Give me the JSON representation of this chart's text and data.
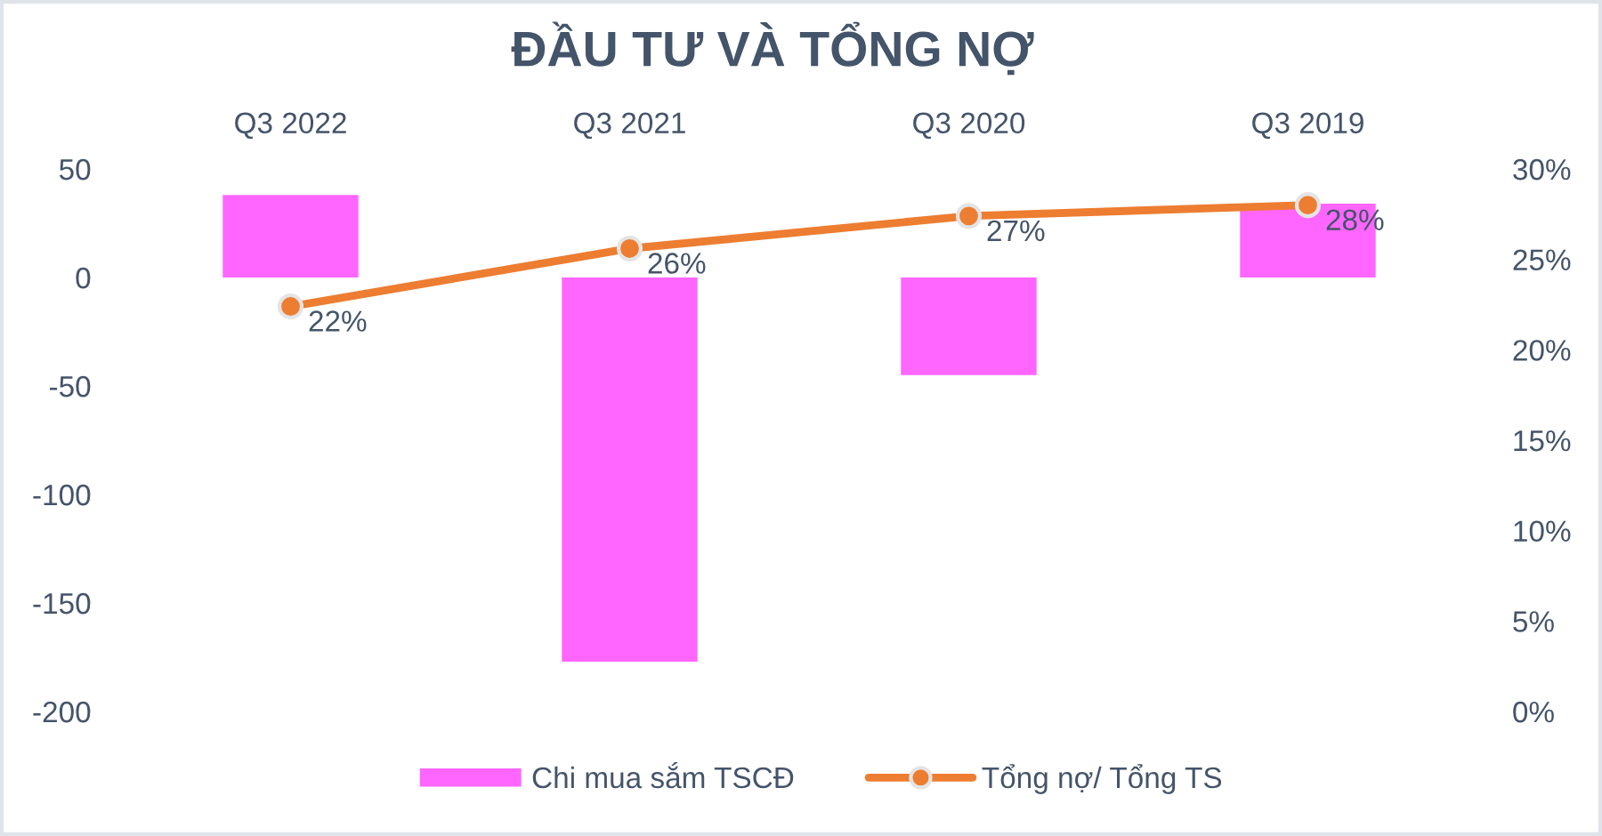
{
  "chart_data": {
    "type": "bar",
    "title": "ĐẦU TƯ VÀ TỔNG NỢ",
    "categories": [
      "Q3 2022",
      "Q3 2021",
      "Q3 2020",
      "Q3 2019"
    ],
    "series": [
      {
        "name": "Chi mua sắm TSCĐ",
        "color": "#ff66ff",
        "values": [
          38,
          -177,
          -45,
          34
        ]
      },
      {
        "name": "Tổng nợ/ Tổng TS",
        "type": "line",
        "axis": "y2",
        "color": "#ed7d31",
        "marker": "circle",
        "values": [
          22.4,
          25.6,
          27.4,
          28
        ],
        "value_labels": [
          "22%",
          "26%",
          "27%",
          "28%"
        ]
      }
    ],
    "ylim": [
      -200,
      50
    ],
    "yticks": [
      -200,
      -150,
      -100,
      -50,
      0,
      50
    ],
    "y2lim": [
      0,
      30
    ],
    "y2ticks": [
      {
        "value": 0,
        "label": "0%"
      },
      {
        "value": 5,
        "label": "5%"
      },
      {
        "value": 10,
        "label": "10%"
      },
      {
        "value": 15,
        "label": "15%"
      },
      {
        "value": 20,
        "label": "20%"
      },
      {
        "value": 25,
        "label": "25%"
      },
      {
        "value": 30,
        "label": "30%"
      }
    ],
    "grid": false,
    "legend": "bottom"
  }
}
